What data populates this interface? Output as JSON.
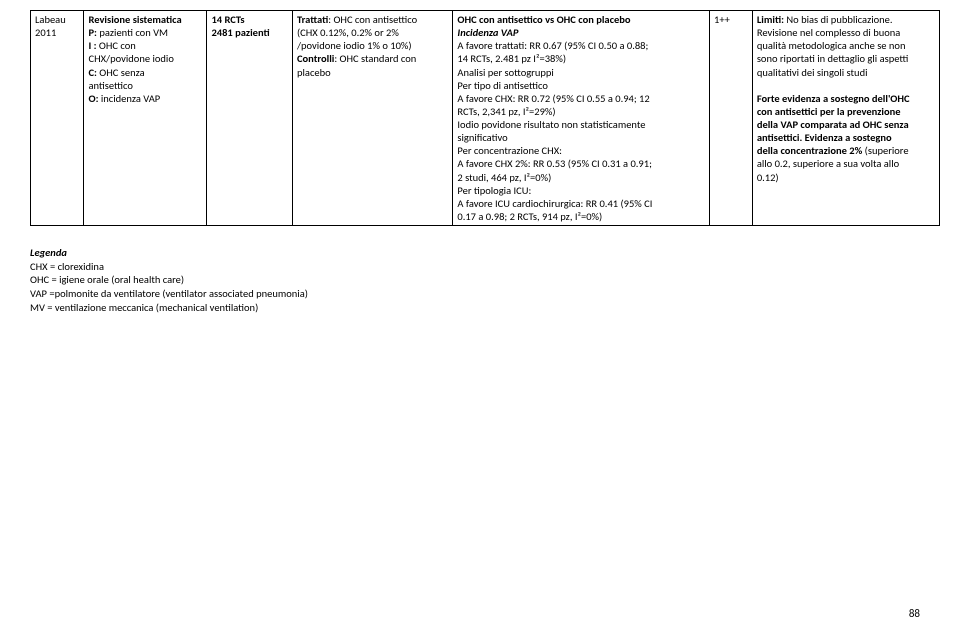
{
  "row": {
    "c1_l1": "Labeau",
    "c1_l2": "2011",
    "c2_l1_b": "Revisione sistematica",
    "c2_l2a_b": "P:",
    "c2_l2b": " pazienti con VM",
    "c2_l3a_b": "I :",
    "c2_l3b": " OHC con",
    "c2_l4": "CHX/povidone iodio",
    "c2_l5a_b": "C:",
    "c2_l5b": " OHC senza",
    "c2_l6": "antisettico",
    "c2_l7a_b": "O:",
    "c2_l7b": " incidenza VAP",
    "c3_l1_b": "14 RCTs",
    "c3_l2_b": "2481 pazienti",
    "c4_l1a_b": "Trattati",
    "c4_l1b": ": OHC con antisettico",
    "c4_l2": "(CHX  0.12%, 0.2% or 2%",
    "c4_l3": "/povidone iodio  1% o 10%)",
    "c4_l4a_b": "Controlli",
    "c4_l4b": ": OHC standard con",
    "c4_l5": "placebo",
    "c5_l1_b": "OHC con antisettico vs OHC con placebo",
    "c5_l2_bi": "Incidenza VAP",
    "c5_l3": "A favore trattati: RR 0.67 (95% CI 0.50 a 0.88;",
    "c5_l4": "14 RCTs, 2.481 pz   I²=38%)",
    "c5_l5": "Analisi per sottogruppi",
    "c5_l6": "Per tipo di antisettico",
    "c5_l7": "A favore CHX: RR 0.72 (95% CI 0.55 a 0.94; 12",
    "c5_l8": "RCTs, 2,341 pz, I²=29%)",
    "c5_l9": "Iodio povidone   risultato non statisticamente",
    "c5_l10": "significativo",
    "c5_l11": "Per concentrazione CHX:",
    "c5_l12": "A favore CHX 2%: RR 0.53 (95% CI 0.31 a 0.91;",
    "c5_l13": "2 studi, 464 pz, I²=0%)",
    "c5_l14": "Per tipologia ICU:",
    "c5_l15": "A favore ICU cardiochirurgica: RR 0.41 (95% CI",
    "c5_l16": "0.17 a 0.98; 2 RCTs, 914 pz, I²=0%)",
    "c6_l1": "1++",
    "c7_l1a_b": "Limiti:",
    "c7_l1b": "  No bias di pubblicazione.",
    "c7_l2": "Revisione nel complesso di buona",
    "c7_l3": "qualità metodologica anche se non",
    "c7_l4": "sono riportati in dettaglio gli aspetti",
    "c7_l5": "qualitativi dei singoli studi",
    "c7_l6_b": "Forte evidenza a sostegno dell'OHC",
    "c7_l7_b": "con antisettici per la prevenzione",
    "c7_l8_b": "della VAP comparata ad OHC senza",
    "c7_l9a_b": "antisettici. Evidenza a sostegno",
    "c7_l10a_b": "della concentrazione 2% ",
    "c7_l10b": "(superiore",
    "c7_l11": "allo 0.2, superiore a sua volta allo",
    "c7_l12": "0.12)"
  },
  "legend": {
    "title_bi": "Legenda",
    "l1": "CHX = clorexidina",
    "l2": "OHC = igiene orale (oral health care)",
    "l3": "VAP =polmonite da ventilatore (ventilator associated pneumonia)",
    "l4": "MV =  ventilazione meccanica (mechanical ventilation)"
  },
  "pagenum": "88"
}
